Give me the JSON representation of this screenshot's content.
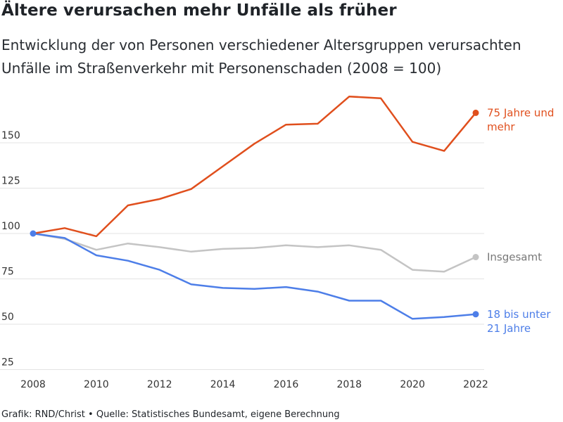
{
  "title": "Ältere verursachen mehr Unfälle als früher",
  "subtitle": "Entwicklung der von Personen verschiedener Altersgruppen verursachten Unfälle im Straßenverkehr mit Personenschaden (2008 = 100)",
  "footer": "Grafik: RND/Christ • Quelle: Statistisches Bundesamt, eigene Berechnung",
  "chart_data": {
    "type": "line",
    "title": "Ältere verursachen mehr Unfälle als früher",
    "xlabel": "",
    "ylabel": "",
    "x": [
      2008,
      2009,
      2010,
      2011,
      2012,
      2013,
      2014,
      2015,
      2016,
      2017,
      2018,
      2019,
      2020,
      2021,
      2022
    ],
    "xticks": [
      "2008",
      "2010",
      "2012",
      "2014",
      "2016",
      "2018",
      "2020",
      "2022"
    ],
    "yticks": [
      "25",
      "50",
      "75",
      "100",
      "125",
      "150"
    ],
    "ylim": [
      25,
      175
    ],
    "grid": "horizontal",
    "legend": "direct labels at line ends",
    "series": [
      {
        "name": "Insgesamt",
        "color": "#c4c4c4",
        "values": [
          100,
          97,
          91,
          94.5,
          92.5,
          90,
          91.5,
          92,
          93.5,
          92.5,
          93.5,
          91,
          80,
          79,
          87
        ]
      },
      {
        "name": "18 bis unter 21 Jahre",
        "color": "#4d7ee8",
        "values": [
          100,
          97.5,
          88,
          85,
          80,
          72,
          70,
          69.5,
          70.5,
          68,
          63,
          63,
          53,
          54,
          55.5
        ]
      },
      {
        "name": "75 Jahre und mehr",
        "color": "#e04f1d",
        "values": [
          100,
          103,
          98.5,
          115.5,
          119,
          124.5,
          137,
          149.5,
          160,
          160.5,
          175.5,
          174.5,
          150.5,
          145.5,
          166.5
        ]
      }
    ]
  }
}
